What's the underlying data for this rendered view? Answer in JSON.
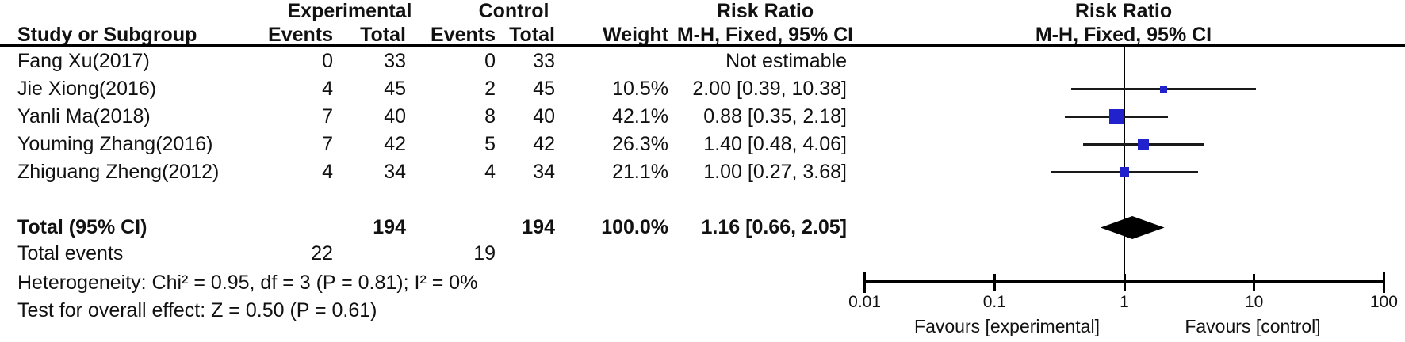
{
  "table": {
    "header_top": {
      "experimental": "Experimental",
      "control": "Control",
      "risk_ratio_text": "Risk Ratio",
      "risk_ratio_plot": "Risk Ratio"
    },
    "header": {
      "study": "Study or Subgroup",
      "events1": "Events",
      "total1": "Total",
      "events2": "Events",
      "total2": "Total",
      "weight": "Weight",
      "ci": "M-H, Fixed, 95% CI",
      "ci_plot": "M-H, Fixed, 95% CI"
    },
    "rows": [
      {
        "study": "Fang Xu(2017)",
        "events1": "0",
        "total1": "33",
        "events2": "0",
        "total2": "33",
        "weight": "",
        "ci": "Not estimable"
      },
      {
        "study": "Jie Xiong(2016)",
        "events1": "4",
        "total1": "45",
        "events2": "2",
        "total2": "45",
        "weight": "10.5%",
        "ci": "2.00 [0.39, 10.38]"
      },
      {
        "study": "Yanli Ma(2018)",
        "events1": "7",
        "total1": "40",
        "events2": "8",
        "total2": "40",
        "weight": "42.1%",
        "ci": "0.88 [0.35, 2.18]"
      },
      {
        "study": "Youming Zhang(2016)",
        "events1": "7",
        "total1": "42",
        "events2": "5",
        "total2": "42",
        "weight": "26.3%",
        "ci": "1.40 [0.48, 4.06]"
      },
      {
        "study": "Zhiguang Zheng(2012)",
        "events1": "4",
        "total1": "34",
        "events2": "4",
        "total2": "34",
        "weight": "21.1%",
        "ci": "1.00 [0.27, 3.68]"
      }
    ],
    "total_row": {
      "label": "Total (95% CI)",
      "total1": "194",
      "total2": "194",
      "weight": "100.0%",
      "ci": "1.16 [0.66, 2.05]"
    },
    "total_events": {
      "label": "Total events",
      "events1": "22",
      "events2": "19"
    },
    "heterogeneity": "Heterogeneity: Chi² = 0.95, df = 3 (P = 0.81); I² = 0%",
    "overall_effect": "Test for overall effect: Z = 0.50 (P = 0.61)"
  },
  "chart_data": {
    "type": "scatter",
    "subtype": "forest_plot",
    "title": "Risk Ratio",
    "method": "M-H, Fixed, 95% CI",
    "x_scale": "log10",
    "x_range": [
      0.01,
      100
    ],
    "x_ticks": [
      0.01,
      0.1,
      1,
      10,
      100
    ],
    "square_color": "#2222CC",
    "diamond_color": "#000000",
    "studies": [
      {
        "label": "Fang Xu(2017)",
        "rr": null,
        "ci_low": null,
        "ci_high": null,
        "weight_pct": null,
        "note": "Not estimable"
      },
      {
        "label": "Jie Xiong(2016)",
        "rr": 2.0,
        "ci_low": 0.39,
        "ci_high": 10.38,
        "weight_pct": 10.5
      },
      {
        "label": "Yanli Ma(2018)",
        "rr": 0.88,
        "ci_low": 0.35,
        "ci_high": 2.18,
        "weight_pct": 42.1
      },
      {
        "label": "Youming Zhang(2016)",
        "rr": 1.4,
        "ci_low": 0.48,
        "ci_high": 4.06,
        "weight_pct": 26.3
      },
      {
        "label": "Zhiguang Zheng(2012)",
        "rr": 1.0,
        "ci_low": 0.27,
        "ci_high": 3.68,
        "weight_pct": 21.1
      }
    ],
    "pooled": {
      "label": "Total (95% CI)",
      "rr": 1.16,
      "ci_low": 0.66,
      "ci_high": 2.05
    },
    "favours_left": "Favours [experimental]",
    "favours_right": "Favours [control]"
  }
}
